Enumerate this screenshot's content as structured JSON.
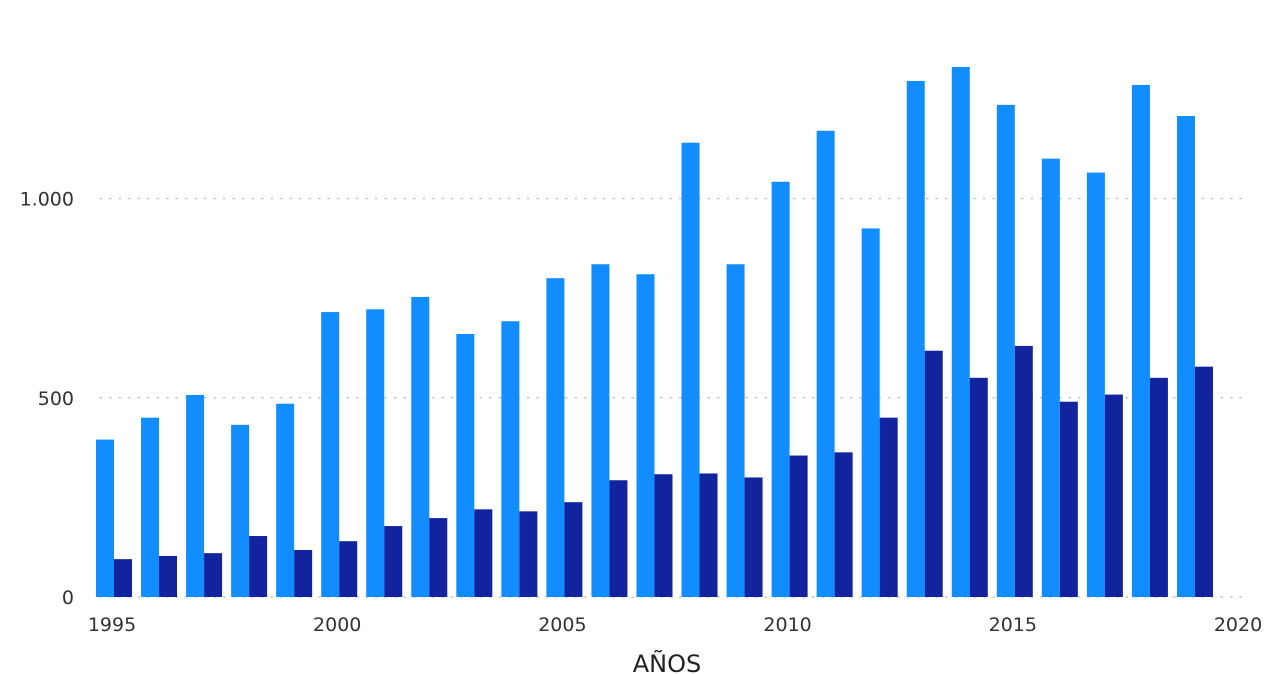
{
  "chart_data": {
    "type": "bar",
    "xlabel": "AÑOS",
    "ylabel": "",
    "ylim": [
      0,
      1350
    ],
    "yticks": [
      {
        "value": 0,
        "label": "0"
      },
      {
        "value": 500,
        "label": "500"
      },
      {
        "value": 1000,
        "label": "1.000"
      }
    ],
    "xticks": [
      {
        "value": 1995,
        "label": "1995"
      },
      {
        "value": 2000,
        "label": "2000"
      },
      {
        "value": 2005,
        "label": "2005"
      },
      {
        "value": 2010,
        "label": "2010"
      },
      {
        "value": 2015,
        "label": "2015"
      },
      {
        "value": 2020,
        "label": "2020"
      }
    ],
    "xlim": [
      1995,
      2020
    ],
    "grid": "horizontal dotted",
    "categories": [
      1995,
      1996,
      1997,
      1998,
      1999,
      2000,
      2001,
      2002,
      2003,
      2004,
      2005,
      2006,
      2007,
      2008,
      2009,
      2010,
      2011,
      2012,
      2013,
      2014,
      2015,
      2016,
      2017,
      2018,
      2019
    ],
    "series": [
      {
        "color": "#118dff",
        "values": [
          395,
          450,
          507,
          432,
          485,
          715,
          722,
          753,
          660,
          692,
          800,
          835,
          810,
          1140,
          835,
          1042,
          1170,
          925,
          1295,
          1330,
          1235,
          1100,
          1065,
          1285,
          1207
        ]
      },
      {
        "color": "#12239e",
        "values": [
          95,
          103,
          110,
          153,
          118,
          140,
          178,
          198,
          220,
          215,
          238,
          293,
          308,
          310,
          300,
          355,
          363,
          450,
          618,
          550,
          630,
          490,
          508,
          550,
          578
        ]
      }
    ]
  }
}
